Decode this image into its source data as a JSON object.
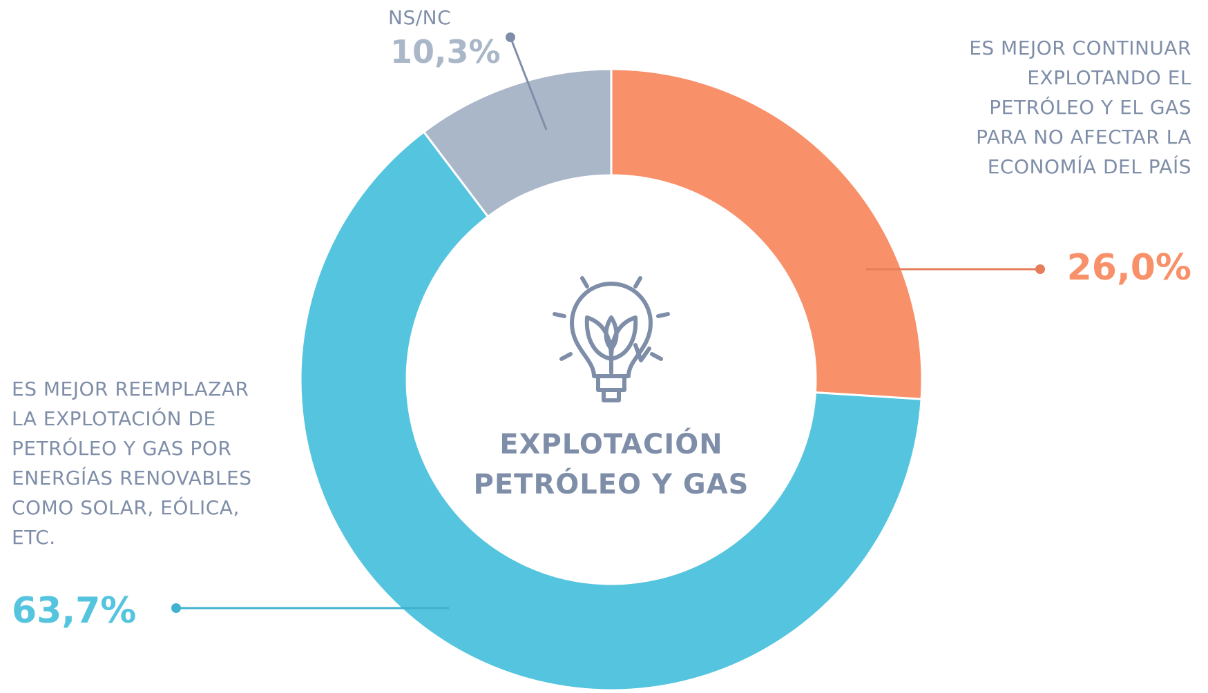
{
  "chart_data": {
    "type": "donut",
    "title": "EXPLOTACIÓN PETRÓLEO Y GAS",
    "categories": [
      "ES MEJOR CONTINUAR EXPLOTANDO EL PETRÓLEO Y EL GAS PARA NO AFECTAR LA ECONOMÍA DEL PAÍS",
      "ES MEJOR REEMPLAZAR LA EXPLOTACIÓN DE PETRÓLEO Y GAS POR ENERGÍAS RENOVABLES COMO SOLAR, EÓLICA, ETC.",
      "NS/NC"
    ],
    "values": [
      26.0,
      63.7,
      10.3
    ],
    "value_labels": [
      "26,0%",
      "63,7%",
      "10,3%"
    ],
    "colors": [
      "#f8916a",
      "#55c4de",
      "#aab7c9"
    ]
  }
}
